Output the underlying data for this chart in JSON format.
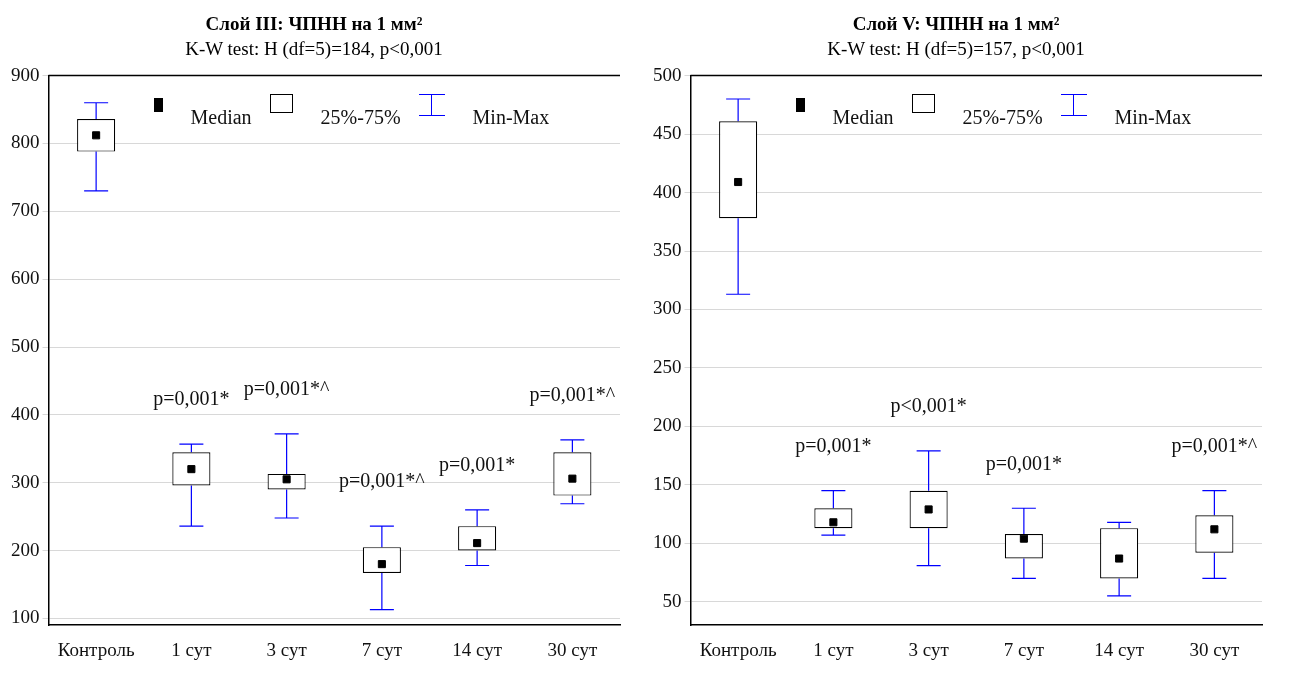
{
  "chart_data": [
    {
      "type": "box",
      "title": "Слой III: ЧПНН на 1 мм²",
      "subtitle": "K-W test: H (df=5)=184, p<0,001",
      "categories": [
        "Контроль",
        "1 сут",
        "3 сут",
        "7 сут",
        "14 сут",
        "30 сут"
      ],
      "color": "#000000",
      "boxes": [
        {
          "low": 730,
          "q1": 788,
          "median": 812,
          "q3": 836,
          "high": 860
        },
        {
          "low": 236,
          "q1": 296,
          "median": 320,
          "q3": 345,
          "high": 357
        },
        {
          "low": 248,
          "q1": 290,
          "median": 305,
          "q3": 313,
          "high": 372
        },
        {
          "low": 113,
          "q1": 167,
          "median": 180,
          "q3": 205,
          "high": 236
        },
        {
          "low": 178,
          "q1": 200,
          "median": 211,
          "q3": 236,
          "high": 260
        },
        {
          "low": 269,
          "q1": 281,
          "median": 306,
          "q3": 345,
          "high": 363
        }
      ],
      "value_labels": [
        null,
        "p=0,001*",
        "p=0,001*^",
        "p=0,001*^",
        "p=0,001*",
        "p=0,001*^"
      ],
      "ylim": [
        90,
        900
      ],
      "yticks": [
        100,
        200,
        300,
        400,
        500,
        600,
        700,
        800,
        900
      ],
      "grid": "y",
      "annotations": [
        "Median",
        "25%-75%",
        "Min-Max"
      ]
    },
    {
      "type": "box",
      "title": "Слой V: ЧПНН на 1 мм²",
      "subtitle": "K-W test: H (df=5)=157, p<0,001",
      "categories": [
        "Контроль",
        "1 сут",
        "3 сут",
        "7 сут",
        "14 сут",
        "30 сут"
      ],
      "color": "#000000",
      "boxes": [
        {
          "low": 313,
          "q1": 378,
          "median": 409,
          "q3": 461,
          "high": 480
        },
        {
          "low": 107,
          "q1": 113,
          "median": 118,
          "q3": 130,
          "high": 145
        },
        {
          "low": 81,
          "q1": 113,
          "median": 129,
          "q3": 145,
          "high": 179
        },
        {
          "low": 70,
          "q1": 87,
          "median": 104,
          "q3": 108,
          "high": 130
        },
        {
          "low": 55,
          "q1": 70,
          "median": 87,
          "q3": 113,
          "high": 118
        },
        {
          "low": 70,
          "q1": 92,
          "median": 112,
          "q3": 124,
          "high": 145
        }
      ],
      "value_labels": [
        null,
        "p=0,001*",
        "p<0,001*",
        "p=0,001*",
        null,
        "p=0,001*^"
      ],
      "ylim": [
        30,
        500
      ],
      "yticks": [
        50,
        100,
        150,
        200,
        250,
        300,
        350,
        400,
        450,
        500
      ],
      "grid": "y",
      "annotations": [
        "Median",
        "25%-75%",
        "Min-Max"
      ]
    }
  ]
}
